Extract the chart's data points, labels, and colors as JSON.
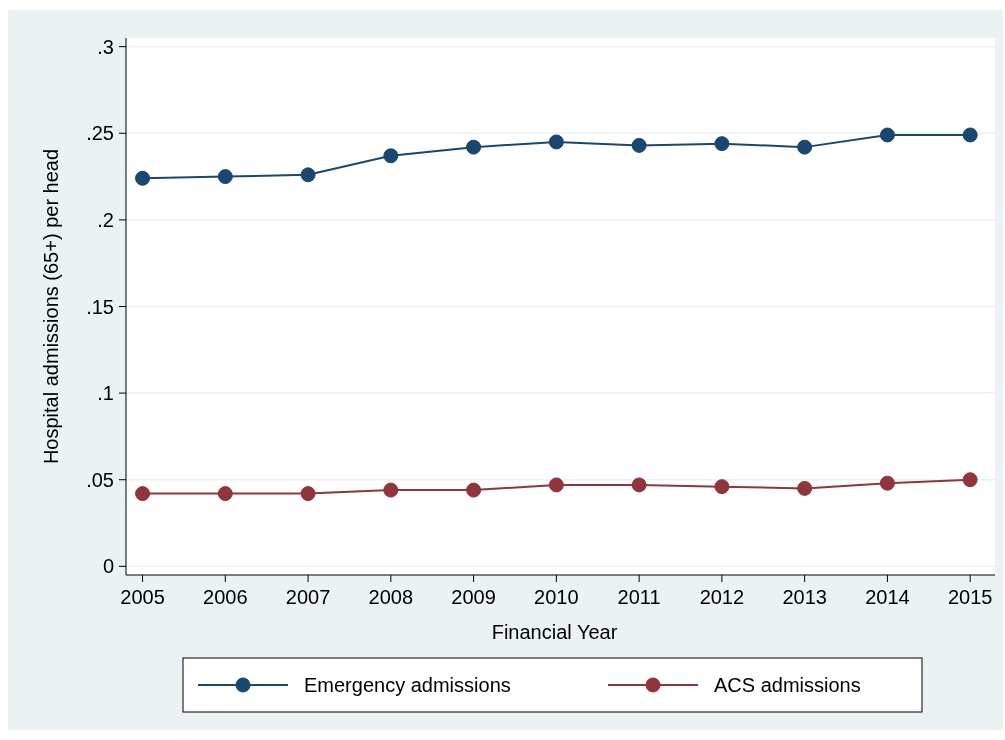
{
  "chart_data": {
    "type": "line",
    "xlabel": "Financial Year",
    "ylabel": "Hospital admissions (65+) per head",
    "x": [
      2005,
      2006,
      2007,
      2008,
      2009,
      2010,
      2011,
      2012,
      2013,
      2014,
      2015
    ],
    "series": [
      {
        "name": "Emergency admissions",
        "color": "#1a476f",
        "values": [
          0.224,
          0.225,
          0.226,
          0.237,
          0.242,
          0.245,
          0.243,
          0.244,
          0.242,
          0.249,
          0.249
        ]
      },
      {
        "name": "ACS admissions",
        "color": "#90353b",
        "values": [
          0.042,
          0.042,
          0.042,
          0.044,
          0.044,
          0.047,
          0.047,
          0.046,
          0.045,
          0.048,
          0.05
        ]
      }
    ],
    "xlim": [
      2004.8,
      2015.3
    ],
    "xticks": [
      2005,
      2006,
      2007,
      2008,
      2009,
      2010,
      2011,
      2012,
      2013,
      2014,
      2015
    ],
    "ylim": [
      -0.005,
      0.305
    ],
    "yticks": [
      {
        "value": 0,
        "label": "0"
      },
      {
        "value": 0.05,
        "label": ".05"
      },
      {
        "value": 0.1,
        "label": ".1"
      },
      {
        "value": 0.15,
        "label": ".15"
      },
      {
        "value": 0.2,
        "label": ".2"
      },
      {
        "value": 0.25,
        "label": ".25"
      },
      {
        "value": 0.3,
        "label": ".3"
      }
    ],
    "grid": "y",
    "legend": "bottom",
    "marker": "circle",
    "line_style": "solid"
  }
}
